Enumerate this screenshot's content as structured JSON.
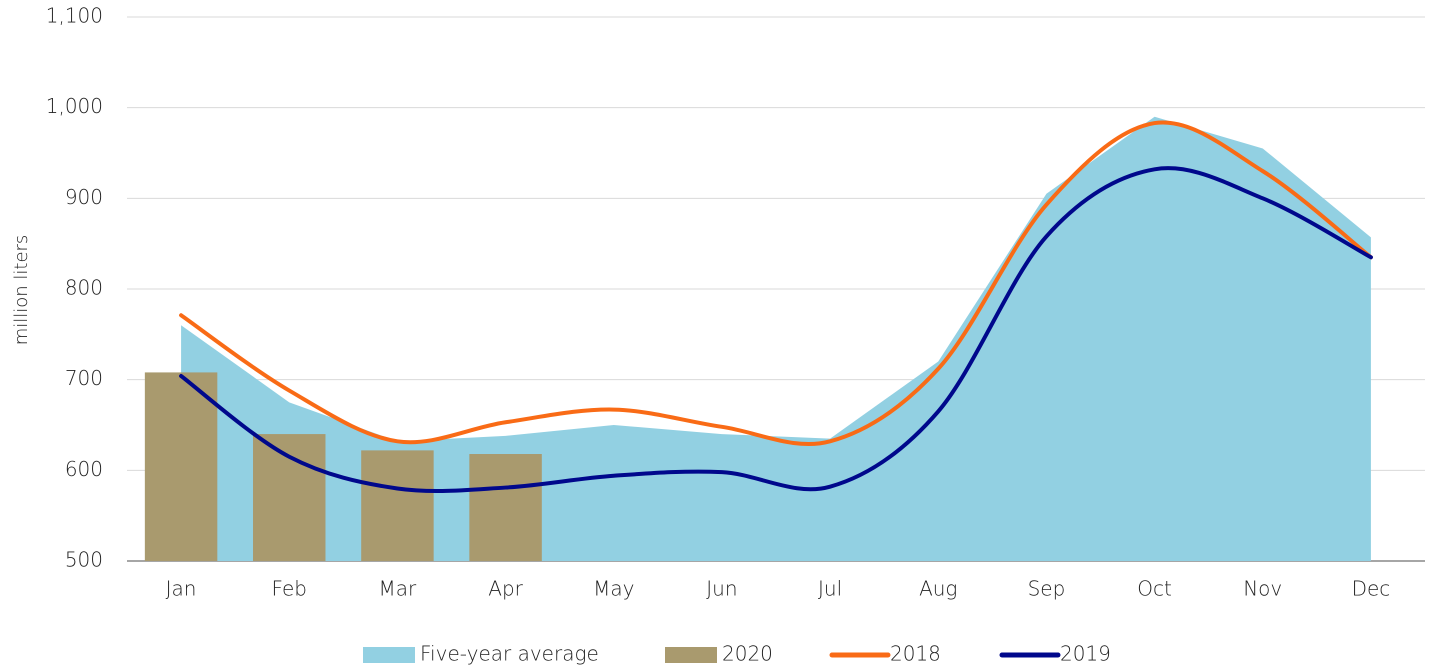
{
  "chart_data": {
    "type": "combo",
    "y_label": "million liters",
    "categories": [
      "Jan",
      "Feb",
      "Mar",
      "Apr",
      "May",
      "Jun",
      "Jul",
      "Aug",
      "Sep",
      "Oct",
      "Nov",
      "Dec"
    ],
    "series": [
      {
        "name": "Five-year average",
        "type": "area",
        "color": "#92d0e2",
        "values": [
          760,
          675,
          632,
          638,
          650,
          640,
          635,
          720,
          905,
          990,
          955,
          857
        ]
      },
      {
        "name": "2020",
        "type": "bar",
        "color": "#a99a6e",
        "values": [
          708,
          640,
          622,
          618,
          null,
          null,
          null,
          null,
          null,
          null,
          null,
          null
        ]
      },
      {
        "name": "2018",
        "type": "line",
        "color": "#f96b16",
        "values": [
          771,
          688,
          632,
          653,
          667,
          648,
          632,
          712,
          893,
          983,
          930,
          835
        ]
      },
      {
        "name": "2019",
        "type": "line",
        "color": "#00088c",
        "values": [
          704,
          615,
          580,
          581,
          594,
          598,
          582,
          665,
          858,
          932,
          900,
          835
        ]
      }
    ],
    "ylim": [
      500,
      1100
    ],
    "yticks": [
      500,
      600,
      700,
      800,
      900,
      {
        "value": 1000,
        "label": "1,000"
      },
      {
        "value": 1100,
        "label": "1,100"
      }
    ],
    "grid": true,
    "legend": "bottom"
  }
}
